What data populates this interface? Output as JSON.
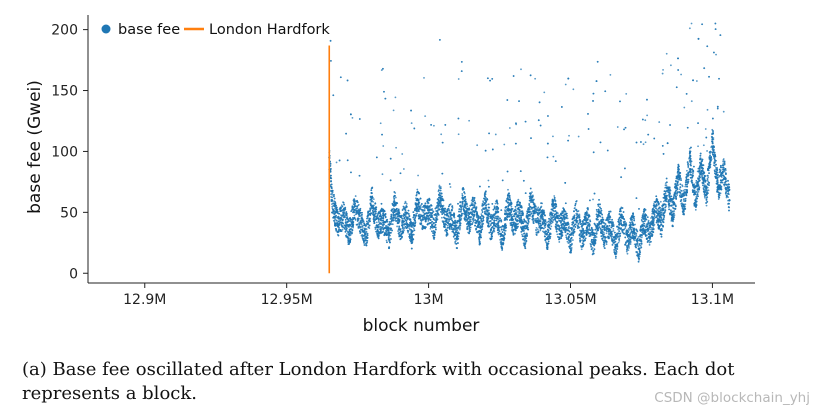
{
  "chart_data": {
    "type": "scatter",
    "xlabel": "block number",
    "ylabel": "base fee (Gwei)",
    "xlim": [
      12880000,
      13115000
    ],
    "ylim": [
      -8,
      212
    ],
    "xticks": [
      {
        "value": 12900000,
        "label": "12.9M"
      },
      {
        "value": 12950000,
        "label": "12.95M"
      },
      {
        "value": 13000000,
        "label": "13M"
      },
      {
        "value": 13050000,
        "label": "13.05M"
      },
      {
        "value": 13100000,
        "label": "13.1M"
      }
    ],
    "yticks": [
      0,
      50,
      100,
      150,
      200
    ],
    "legend": {
      "position": "top-left",
      "items": [
        {
          "label": "base fee",
          "marker": "dot",
          "color": "#1f77b4"
        },
        {
          "label": "London Hardfork",
          "marker": "line",
          "color": "#ff7f0e"
        }
      ]
    },
    "grid": false,
    "series": [
      {
        "name": "base fee",
        "color": "#1f77b4",
        "points": [
          [
            12965000,
            95
          ],
          [
            12966000,
            60
          ],
          [
            12968000,
            40
          ],
          [
            12970000,
            48
          ],
          [
            12972000,
            32
          ],
          [
            12974000,
            55
          ],
          [
            12976000,
            42
          ],
          [
            12978000,
            30
          ],
          [
            12980000,
            62
          ],
          [
            12982000,
            38
          ],
          [
            12984000,
            45
          ],
          [
            12986000,
            28
          ],
          [
            12988000,
            58
          ],
          [
            12990000,
            36
          ],
          [
            12992000,
            50
          ],
          [
            12994000,
            30
          ],
          [
            12996000,
            60
          ],
          [
            12998000,
            44
          ],
          [
            13000000,
            52
          ],
          [
            13002000,
            38
          ],
          [
            13004000,
            64
          ],
          [
            13006000,
            40
          ],
          [
            13008000,
            48
          ],
          [
            13010000,
            30
          ],
          [
            13012000,
            62
          ],
          [
            13014000,
            42
          ],
          [
            13016000,
            54
          ],
          [
            13018000,
            32
          ],
          [
            13020000,
            60
          ],
          [
            13022000,
            36
          ],
          [
            13024000,
            50
          ],
          [
            13026000,
            28
          ],
          [
            13028000,
            58
          ],
          [
            13030000,
            40
          ],
          [
            13032000,
            52
          ],
          [
            13034000,
            30
          ],
          [
            13036000,
            60
          ],
          [
            13038000,
            42
          ],
          [
            13040000,
            48
          ],
          [
            13042000,
            28
          ],
          [
            13044000,
            56
          ],
          [
            13046000,
            36
          ],
          [
            13048000,
            46
          ],
          [
            13050000,
            26
          ],
          [
            13052000,
            52
          ],
          [
            13054000,
            30
          ],
          [
            13056000,
            44
          ],
          [
            13058000,
            24
          ],
          [
            13060000,
            50
          ],
          [
            13062000,
            30
          ],
          [
            13064000,
            42
          ],
          [
            13066000,
            22
          ],
          [
            13068000,
            48
          ],
          [
            13070000,
            26
          ],
          [
            13072000,
            40
          ],
          [
            13074000,
            20
          ],
          [
            13076000,
            45
          ],
          [
            13078000,
            30
          ],
          [
            13080000,
            55
          ],
          [
            13082000,
            40
          ],
          [
            13084000,
            70
          ],
          [
            13086000,
            48
          ],
          [
            13088000,
            80
          ],
          [
            13090000,
            55
          ],
          [
            13092000,
            95
          ],
          [
            13094000,
            60
          ],
          [
            13096000,
            90
          ],
          [
            13098000,
            65
          ],
          [
            13100000,
            110
          ],
          [
            13102000,
            70
          ],
          [
            13104000,
            85
          ],
          [
            13106000,
            60
          ]
        ]
      }
    ],
    "annotations": [
      {
        "type": "vline",
        "label": "London Hardfork",
        "x": 12965000,
        "y_range": [
          0,
          187
        ],
        "color": "#ff7f0e"
      }
    ]
  },
  "caption": "(a)  Base fee oscillated after London Hardfork with occasional peaks. Each dot represents a block.",
  "watermark": "CSDN @blockchain_yhj"
}
